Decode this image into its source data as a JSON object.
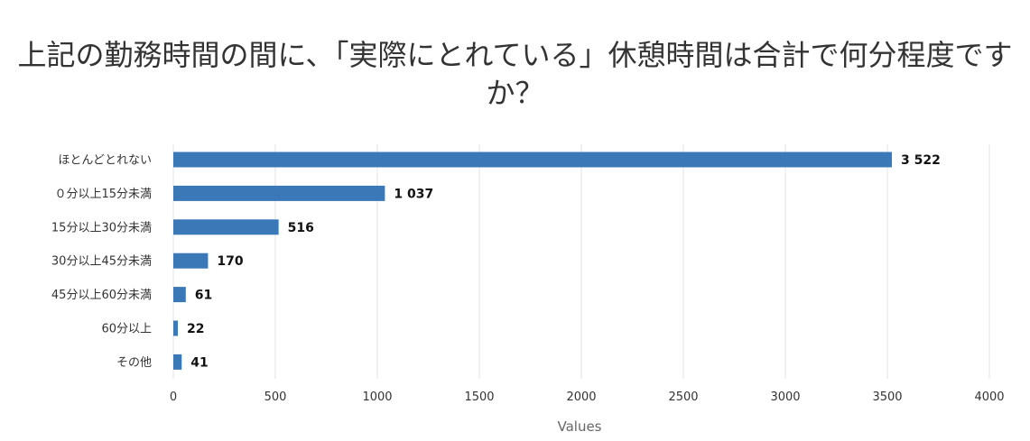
{
  "chart_data": {
    "type": "bar",
    "orientation": "horizontal",
    "title": "上記の勤務時間の間に、「実際にとれている」休憩時間は合計で何分程度ですか？",
    "categories": [
      "ほとんどとれない",
      "０分以上15分未満",
      "15分以上30分未満",
      "30分以上45分未満",
      "45分以上60分未満",
      "60分以上",
      "その他"
    ],
    "values": [
      3522,
      1037,
      516,
      170,
      61,
      22,
      41
    ],
    "value_labels": [
      "3 522",
      "1 037",
      "516",
      "170",
      "61",
      "22",
      "41"
    ],
    "xlabel": "Values",
    "ylabel": "",
    "xlim": [
      0,
      4000
    ],
    "xticks": [
      0,
      500,
      1000,
      1500,
      2000,
      2500,
      3000,
      3500,
      4000
    ],
    "grid": true,
    "legend": "none",
    "bar_color": "#3a78b8"
  }
}
